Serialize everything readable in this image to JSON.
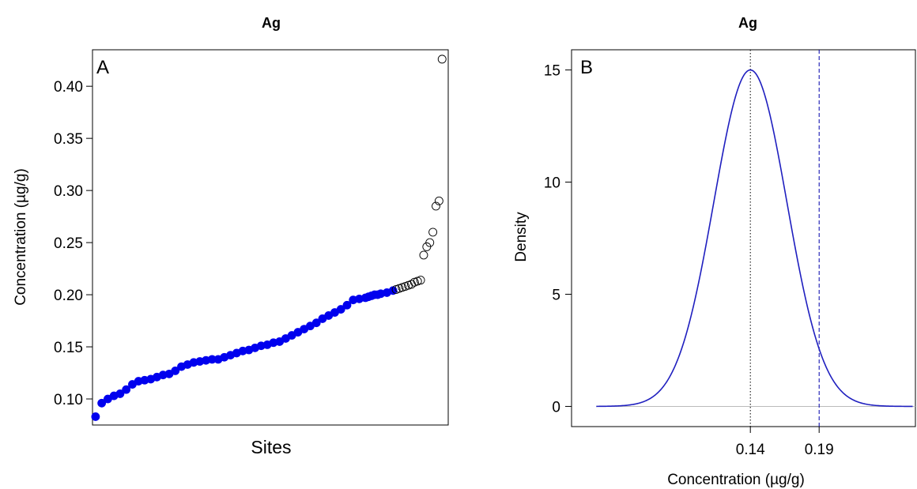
{
  "chart_data": [
    {
      "type": "scatter",
      "title": "Ag",
      "panel_label": "A",
      "xlabel": "Sites",
      "ylabel": "Concentration (µg/g)",
      "ylim": [
        0.075,
        0.435
      ],
      "yticks": [
        "0.10",
        "0.15",
        "0.20",
        "0.25",
        "0.30",
        "0.35",
        "0.40"
      ],
      "ytick_values": [
        0.1,
        0.15,
        0.2,
        0.25,
        0.3,
        0.35,
        0.4
      ],
      "x_axis_ticks": false,
      "grid": false,
      "filled_color": "#0000ee",
      "open_color": "#000000",
      "series": [
        {
          "marker": "filled",
          "x": [
            1,
            3,
            5,
            7,
            9,
            11,
            13,
            15,
            17,
            19,
            21,
            23,
            25,
            27,
            29,
            31,
            33,
            35,
            37,
            39,
            41,
            43,
            45,
            47,
            49,
            51,
            53,
            55,
            57,
            59,
            61,
            63,
            65,
            67,
            69,
            71,
            73,
            75,
            77,
            79,
            81,
            83,
            85,
            87,
            89,
            90,
            91,
            92,
            93,
            94,
            96,
            98
          ],
          "y": [
            0.083,
            0.096,
            0.1,
            0.103,
            0.105,
            0.109,
            0.114,
            0.117,
            0.118,
            0.119,
            0.121,
            0.123,
            0.124,
            0.127,
            0.131,
            0.133,
            0.135,
            0.136,
            0.137,
            0.138,
            0.138,
            0.14,
            0.142,
            0.144,
            0.146,
            0.147,
            0.149,
            0.151,
            0.152,
            0.154,
            0.155,
            0.158,
            0.161,
            0.164,
            0.167,
            0.17,
            0.173,
            0.177,
            0.18,
            0.183,
            0.186,
            0.19,
            0.195,
            0.196,
            0.197,
            0.198,
            0.199,
            0.2,
            0.2,
            0.201,
            0.202,
            0.204
          ]
        },
        {
          "marker": "open",
          "x": [
            99,
            100,
            101,
            102,
            103,
            104,
            105,
            106,
            107,
            108,
            109,
            110,
            111,
            112,
            113,
            114
          ],
          "y": [
            0.205,
            0.206,
            0.207,
            0.208,
            0.209,
            0.21,
            0.212,
            0.213,
            0.214,
            0.238,
            0.246,
            0.25,
            0.26,
            0.285,
            0.29,
            0.426
          ]
        }
      ],
      "xlim": [
        0,
        116
      ]
    },
    {
      "type": "line",
      "title": "Ag",
      "panel_label": "B",
      "xlabel": "Concentration (µg/g)",
      "ylabel": "Density",
      "xlim": [
        0.01,
        0.26
      ],
      "ylim": [
        -0.9,
        15.9
      ],
      "yticks": [
        "0",
        "5",
        "10",
        "15"
      ],
      "ytick_values": [
        0,
        5,
        10,
        15
      ],
      "xticks": [
        "0.14",
        "0.19"
      ],
      "xtick_values": [
        0.14,
        0.19
      ],
      "vlines": [
        {
          "x": 0.14,
          "style": "dotted",
          "color": "#000000"
        },
        {
          "x": 0.19,
          "style": "dashed",
          "color": "#0000aa"
        }
      ],
      "baseline": {
        "y": 0,
        "color": "#bbbbbb"
      },
      "line_color": "#1f1fbf",
      "grid": false,
      "density": {
        "mean": 0.14,
        "peak": 15.0,
        "x_from": 0.028,
        "x_to": 0.258
      }
    }
  ]
}
